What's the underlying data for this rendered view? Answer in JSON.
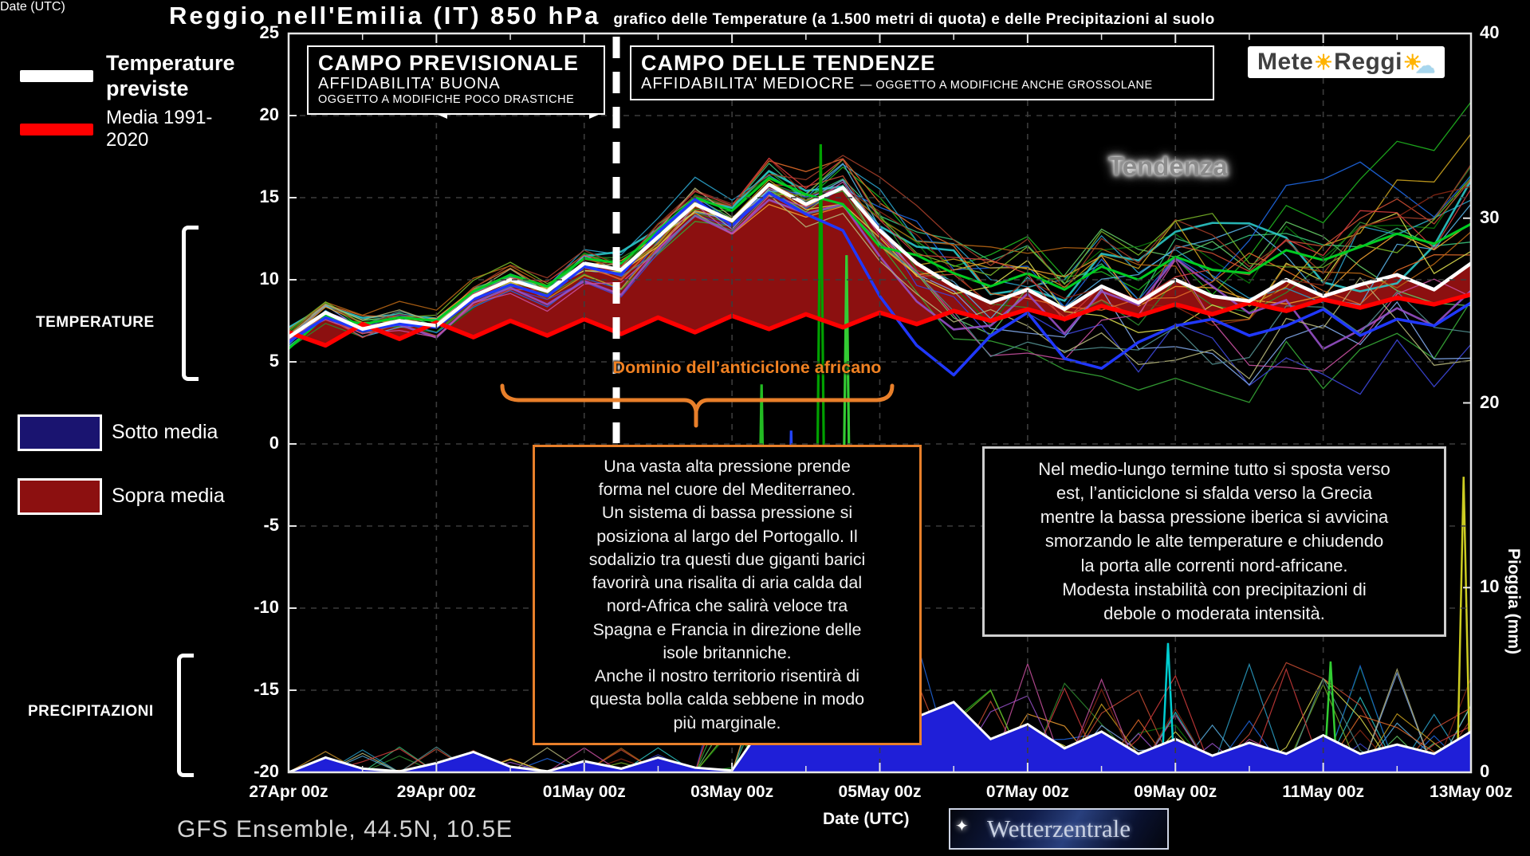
{
  "title": {
    "main": "Reggio nell'Emilia  (IT)  850 hPa",
    "sub": "grafico delle Temperature  (a 1.500 metri di quota) e delle Precipitazioni al suolo"
  },
  "legend": {
    "temp_label": "Temperature previste",
    "temp_color": "#ffffff",
    "media_label": "Media 1991-2020",
    "media_color": "#ff0000",
    "sotto_label": "Sotto media",
    "sotto_color": "#1a1470",
    "sopra_label": "Sopra media",
    "sopra_color": "#8c1010",
    "temperature_bracket": "TEMPERATURE",
    "precip_bracket": "PRECIPITAZIONI"
  },
  "forecast_boxes": {
    "previsionale": {
      "title": "CAMPO PREVISIONALE",
      "line2": "AFFIDABILITA’ BUONA",
      "line3": "OGGETTO A MODIFICHE POCO DRASTICHE"
    },
    "tendenze": {
      "title": "CAMPO DELLE TENDENZE",
      "line2": "AFFIDABILITA’ MEDIOCRE",
      "line2b": "— OGGETTO A MODIFICHE ANCHE GROSSOLANE"
    }
  },
  "annotations": {
    "tendenza": "Tendenza",
    "dominio": "Dominio dell’anticiclone africano",
    "nota_previsione": "Una vasta alta pressione prende\nforma nel cuore del Mediterraneo.\nUn sistema di bassa pressione si\nposiziona al largo del Portogallo. Il\nsodalizio tra questi due giganti barici\nfavorirà una risalita di aria calda dal\nnord-Africa che salirà veloce tra\nSpagna e Francia in direzione delle\nisole britanniche.\nAnche il nostro territorio risentirà di\nquesta bolla calda sebbene in modo\npiù marginale.",
    "nota_tendenza": "Nel medio-lungo termine tutto si sposta verso\nest, l’anticiclone si sfalda verso la Grecia\nmentre la bassa pressione iberica si avvicina\nsmorzando le alte temperature e chiudendo\nla porta alle correnti nord-africane.\nModesta instabilità con precipitazioni di\ndebole o moderata intensità."
  },
  "footer": {
    "model": "GFS Ensemble, 44.5N, 10.5E",
    "xlabel": "Date (UTC)"
  },
  "logos": {
    "meteo_part1": "Mete",
    "meteo_part2": " Reggi",
    "wetterzentrale": "Wetterzentrale"
  },
  "chart_data": {
    "type": "line",
    "x_days_step": 0.5,
    "x_tick_days": [
      0,
      2,
      4,
      6,
      8,
      10,
      12,
      14,
      16
    ],
    "x_tick_labels": [
      "27Apr 00z",
      "29Apr 00z",
      "01May 00z",
      "03May 00z",
      "05May 00z",
      "07May 00z",
      "09May 00z",
      "11May 00z",
      "13May 00z"
    ],
    "temp_axis": {
      "ticks": [
        25,
        20,
        15,
        10,
        5,
        0,
        -5,
        -10,
        -15,
        -20
      ],
      "range": [
        -20,
        25
      ]
    },
    "rain_axis": {
      "ticks": [
        40,
        30,
        20,
        10,
        0
      ],
      "range": [
        0,
        40
      ],
      "label": "Pioggia (mm)"
    },
    "series": {
      "temperature_prevista": {
        "color": "#ffffff",
        "width": 4.5,
        "values": [
          6.5,
          8.0,
          7.0,
          7.5,
          7.2,
          9.0,
          10.0,
          9.3,
          11.0,
          10.6,
          12.6,
          14.6,
          13.6,
          15.8,
          14.6,
          15.6,
          13.0,
          11.0,
          9.6,
          8.6,
          9.4,
          8.2,
          9.6,
          8.6,
          10.0,
          9.0,
          8.7,
          10.0,
          9.0,
          9.7,
          10.3,
          9.4,
          11.0
        ]
      },
      "media_1991_2020": {
        "color": "#ff0000",
        "width": 5.5,
        "values": [
          6.8,
          6.0,
          7.3,
          6.4,
          7.4,
          6.5,
          7.5,
          6.6,
          7.6,
          6.7,
          7.7,
          6.8,
          7.8,
          7.0,
          7.9,
          7.1,
          8.0,
          7.3,
          8.1,
          7.5,
          8.2,
          7.6,
          8.4,
          7.8,
          8.5,
          7.9,
          8.6,
          8.1,
          8.8,
          8.3,
          8.9,
          8.5,
          9.1
        ]
      },
      "member_green": {
        "color": "#00cc22",
        "width": 3,
        "values": [
          5.8,
          7.8,
          7.3,
          7.7,
          7.5,
          9.3,
          10.3,
          9.6,
          11.3,
          11.0,
          13.0,
          15.0,
          14.2,
          16.2,
          15.2,
          14.6,
          12.0,
          11.5,
          10.4,
          9.6,
          10.4,
          9.4,
          10.8,
          10.0,
          11.4,
          10.6,
          10.4,
          11.8,
          11.2,
          12.0,
          12.8,
          12.2,
          13.4
        ]
      },
      "member_blue": {
        "color": "#2038ff",
        "width": 3.5,
        "values": [
          6.2,
          7.7,
          6.9,
          7.3,
          7.1,
          8.8,
          9.7,
          9.0,
          10.8,
          10.3,
          12.9,
          14.9,
          13.3,
          15.3,
          14.0,
          13.0,
          9.0,
          6.0,
          4.2,
          6.6,
          8.0,
          5.2,
          4.6,
          6.2,
          7.2,
          7.6,
          6.6,
          7.2,
          8.2,
          6.6,
          7.6,
          7.2,
          8.6
        ]
      }
    },
    "precip_mean": {
      "fill": "#1f1fd8",
      "outline": "#ffffff",
      "values": [
        0,
        0.8,
        0.2,
        0.05,
        0.5,
        1.1,
        0.3,
        0.05,
        0.6,
        0.2,
        0.8,
        0.25,
        0.1,
        3.0,
        9.5,
        7.0,
        4.0,
        3.0,
        3.8,
        1.8,
        2.6,
        1.3,
        2.2,
        1.0,
        1.8,
        0.9,
        1.6,
        1.0,
        2.0,
        1.0,
        1.5,
        1.0,
        2.2
      ]
    },
    "featured_precip_spikes": [
      {
        "day": 6.4,
        "mm": 21,
        "color": "#22bb22"
      },
      {
        "day": 6.8,
        "mm": 18.5,
        "color": "#2244ff"
      },
      {
        "day": 7.2,
        "mm": 34,
        "color": "#00a000"
      },
      {
        "day": 7.55,
        "mm": 28,
        "color": "#33cc33"
      },
      {
        "day": 7.9,
        "mm": 15,
        "color": "#22bb22"
      },
      {
        "day": 8.2,
        "mm": 6,
        "color": "#ff8c00"
      },
      {
        "day": 11.9,
        "mm": 7,
        "color": "#00ced1"
      },
      {
        "day": 14.1,
        "mm": 6,
        "color": "#32cd32"
      },
      {
        "day": 15.9,
        "mm": 16,
        "color": "#cccc22"
      }
    ],
    "fills": {
      "sopra": "#8c1010",
      "sotto": "#1a1470"
    },
    "ensemble": {
      "count": 26,
      "line_width": 1.3,
      "seed": 20240427,
      "colors": [
        "#2f8b2f",
        "#36a836",
        "#1fb41f",
        "#63c663",
        "#0a7a0a",
        "#39c27a",
        "#2aa0c8",
        "#2bc8c8",
        "#57aee0",
        "#1e66e0",
        "#3c46d8",
        "#7ea6e8",
        "#c84b32",
        "#e06a28",
        "#f0a030",
        "#c8a01e",
        "#d8d84b",
        "#a03c28",
        "#8c2814",
        "#b46414",
        "#9650c8",
        "#c850a0",
        "#78b428",
        "#508c8c",
        "#b4b478",
        "#d23c3c"
      ],
      "spread_profile": [
        0.7,
        0.7,
        0.7,
        0.75,
        0.8,
        0.8,
        0.85,
        0.9,
        0.9,
        1.0,
        1.0,
        1.1,
        1.1,
        1.2,
        1.3,
        1.5,
        1.8,
        2.1,
        2.4,
        2.7,
        2.9,
        3.1,
        3.2,
        3.3,
        3.4,
        3.5,
        3.5,
        3.6,
        3.6,
        3.7,
        3.7,
        3.8,
        3.8
      ]
    }
  }
}
